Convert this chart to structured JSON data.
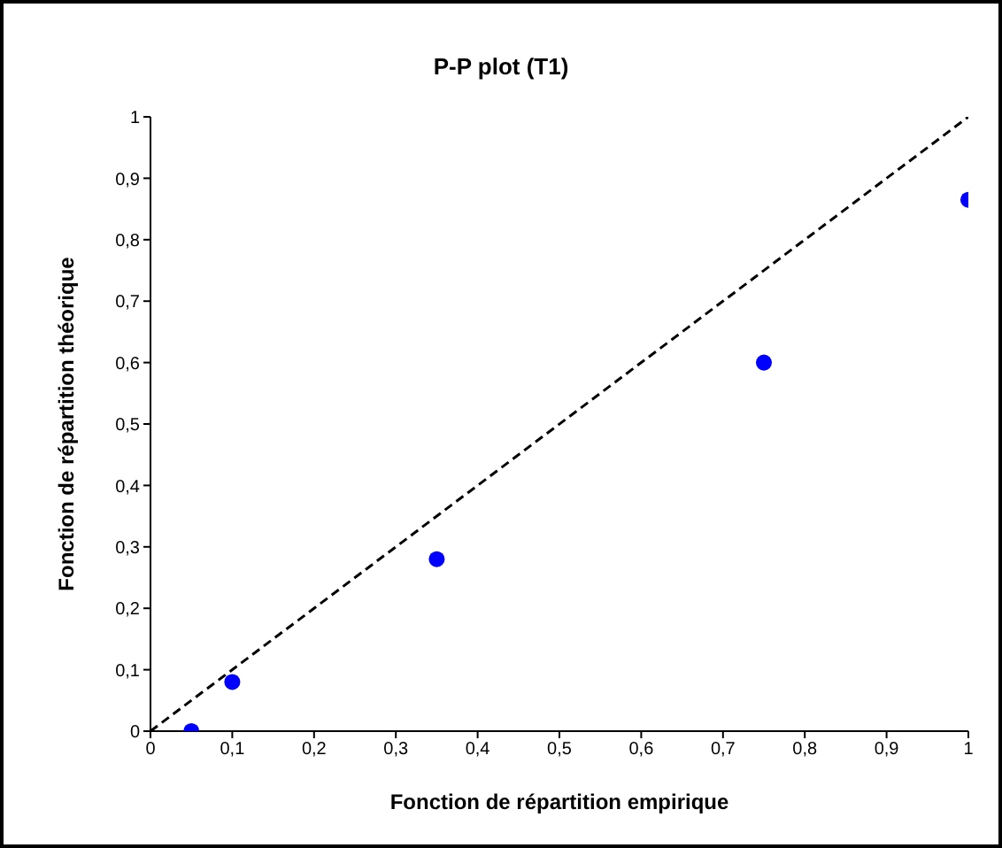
{
  "chart_data": {
    "type": "scatter",
    "title": "P-P plot (T1)",
    "xlabel": "Fonction de répartition empirique",
    "ylabel": "Fonction de répartition théorique",
    "xlim": [
      0,
      1
    ],
    "ylim": [
      0,
      1
    ],
    "xticks": [
      0,
      {
        "value": 0.1,
        "label": "0,1"
      },
      {
        "value": 0.2,
        "label": "0,2"
      },
      {
        "value": 0.3,
        "label": "0,3"
      },
      {
        "value": 0.4,
        "label": "0,4"
      },
      {
        "value": 0.5,
        "label": "0,5"
      },
      {
        "value": 0.6,
        "label": "0,6"
      },
      {
        "value": 0.7,
        "label": "0,7"
      },
      {
        "value": 0.8,
        "label": "0,8"
      },
      {
        "value": 0.9,
        "label": "0,9"
      },
      1
    ],
    "yticks": [
      0,
      {
        "value": 0.1,
        "label": "0,1"
      },
      {
        "value": 0.2,
        "label": "0,2"
      },
      {
        "value": 0.3,
        "label": "0,3"
      },
      {
        "value": 0.4,
        "label": "0,4"
      },
      {
        "value": 0.5,
        "label": "0,5"
      },
      {
        "value": 0.6,
        "label": "0,6"
      },
      {
        "value": 0.7,
        "label": "0,7"
      },
      {
        "value": 0.8,
        "label": "0,8"
      },
      {
        "value": 0.9,
        "label": "0,9"
      },
      1
    ],
    "grid": false,
    "legend": false,
    "series": [
      {
        "color": "#0000ff",
        "marker": "circle",
        "x": [
          0.05,
          0.1,
          0.35,
          0.75,
          1
        ],
        "values": [
          0,
          0.08,
          0.28,
          0.6,
          0.865
        ]
      },
      {
        "type": "line",
        "color": "#000000",
        "marker": "none",
        "line_style": "dashed",
        "x": [
          0,
          1
        ],
        "values": [
          0,
          1
        ]
      }
    ]
  }
}
